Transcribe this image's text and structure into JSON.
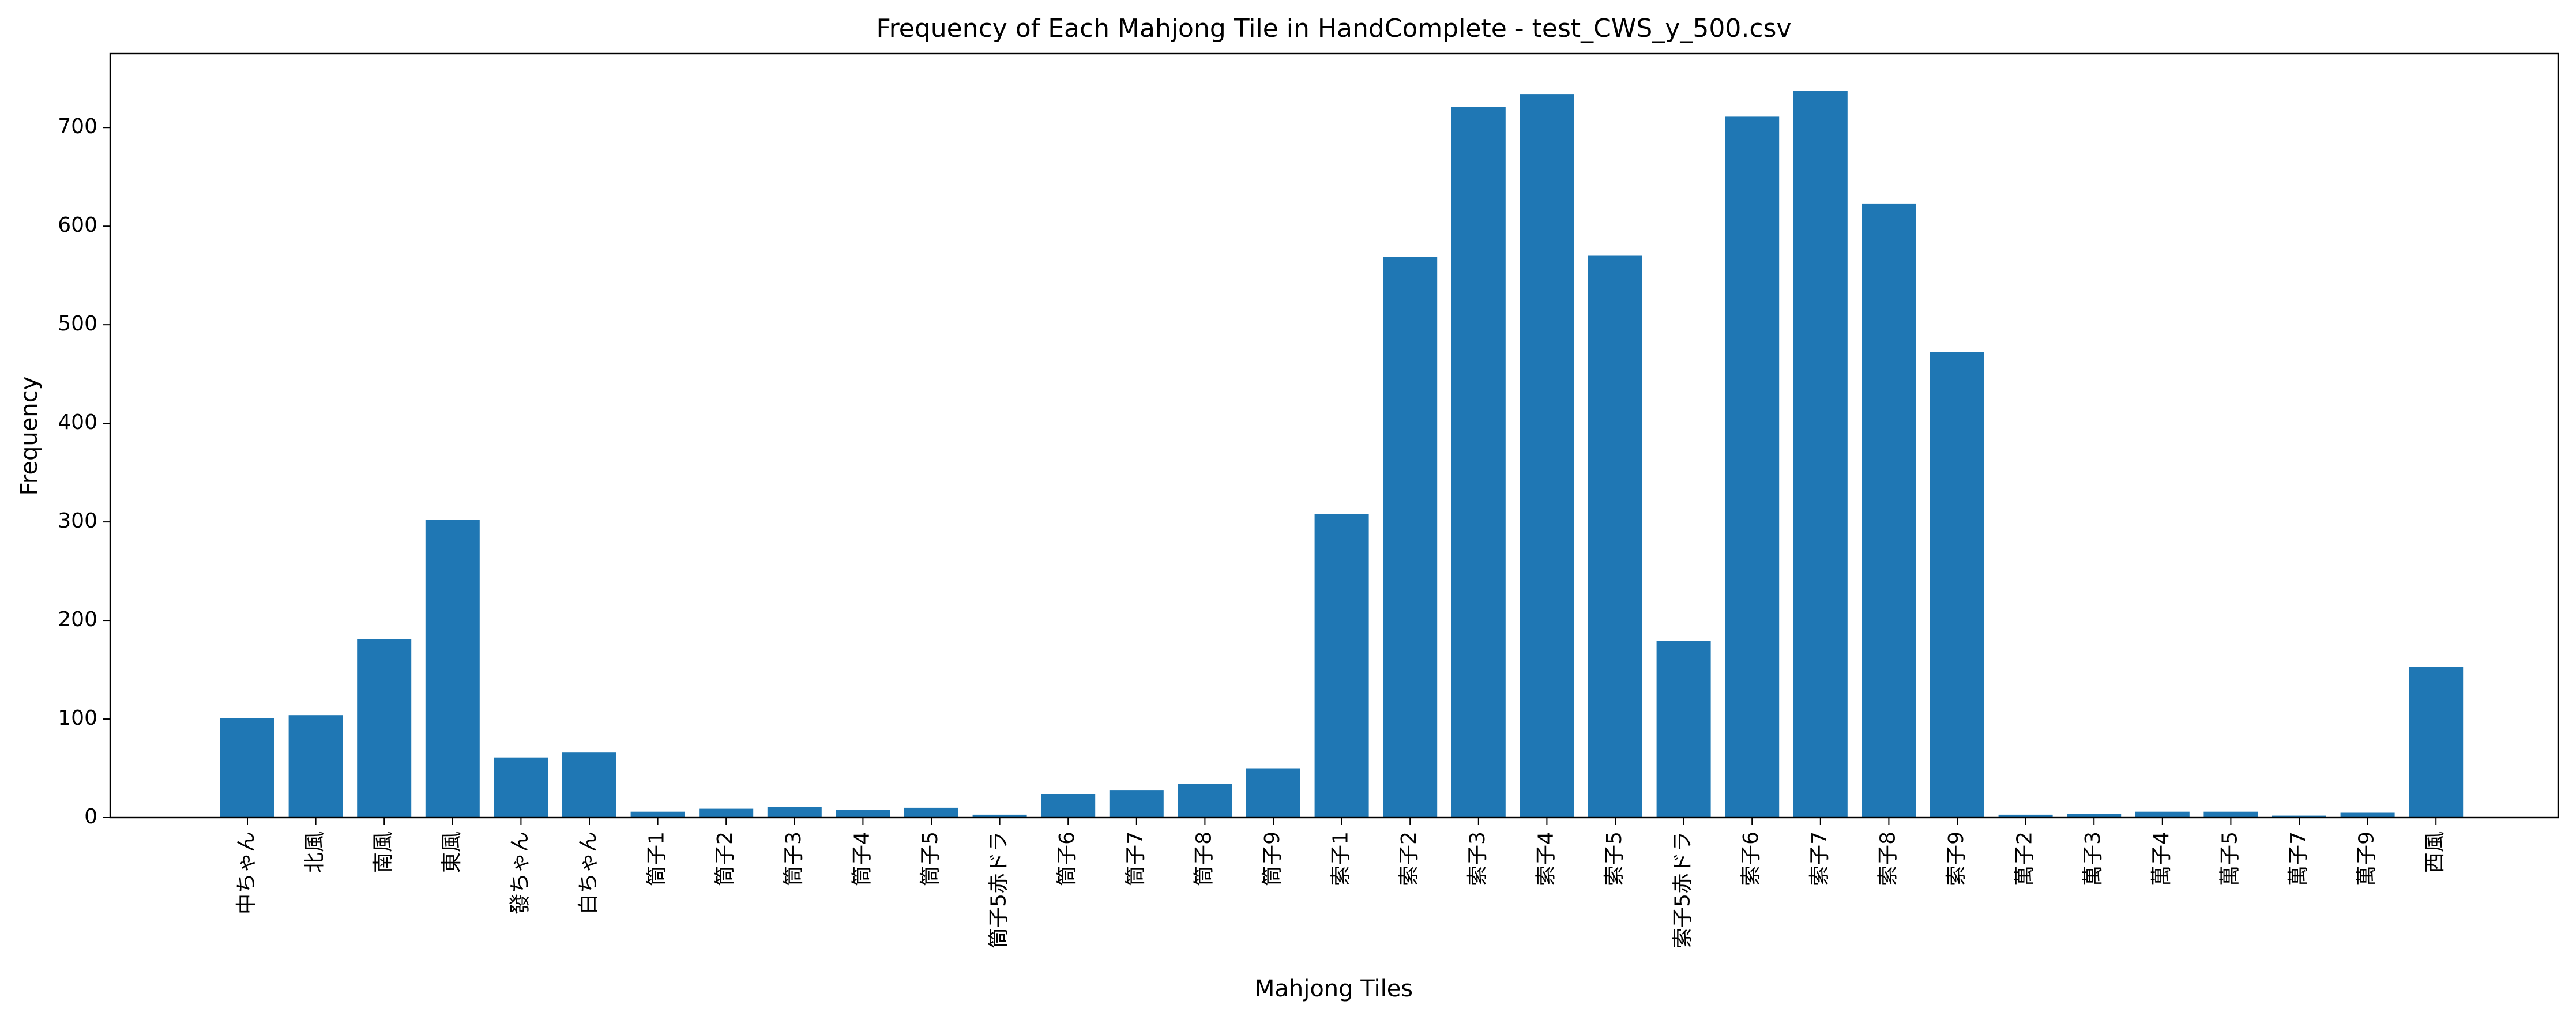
{
  "chart_data": {
    "type": "bar",
    "title": "Frequency of Each Mahjong Tile in HandComplete - test_CWS_y_500.csv",
    "xlabel": "Mahjong Tiles",
    "ylabel": "Frequency",
    "categories": [
      "中ちゃん",
      "北風",
      "南風",
      "東風",
      "發ちゃん",
      "白ちゃん",
      "筒子1",
      "筒子2",
      "筒子3",
      "筒子4",
      "筒子5",
      "筒子5赤ドラ",
      "筒子6",
      "筒子7",
      "筒子8",
      "筒子9",
      "索子1",
      "索子2",
      "索子3",
      "索子4",
      "索子5",
      "索子5赤ドラ",
      "索子6",
      "索子7",
      "索子8",
      "索子9",
      "萬子2",
      "萬子3",
      "萬子4",
      "萬子5",
      "萬子7",
      "萬子9",
      "西風"
    ],
    "values": [
      101,
      104,
      181,
      302,
      61,
      66,
      6,
      9,
      11,
      8,
      10,
      3,
      24,
      28,
      34,
      50,
      308,
      569,
      721,
      734,
      570,
      179,
      711,
      737,
      623,
      472,
      3,
      4,
      6,
      6,
      2,
      5,
      153
    ],
    "yticks": [
      0,
      100,
      200,
      300,
      400,
      500,
      600,
      700
    ],
    "ylim": [
      0,
      775
    ],
    "bar_color": "#1f77b4",
    "grid": false,
    "legend": "none"
  }
}
